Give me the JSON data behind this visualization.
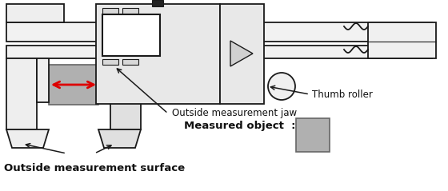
{
  "bg_color": "#ffffff",
  "lc": "#1a1a1a",
  "gray_obj": "#b0b0b0",
  "gray_light": "#e0e0e0",
  "gray_mid": "#c8c8c8",
  "gray_dark": "#888888",
  "red": "#dd0000",
  "black": "#111111",
  "labels": {
    "thumb_roller": "Thumb roller",
    "outside_jaw": "Outside measurement jaw",
    "measured_object": "Measured object  :",
    "outside_surface": "Outside measurement surface"
  },
  "figsize": [
    5.6,
    2.39
  ],
  "dpi": 100
}
